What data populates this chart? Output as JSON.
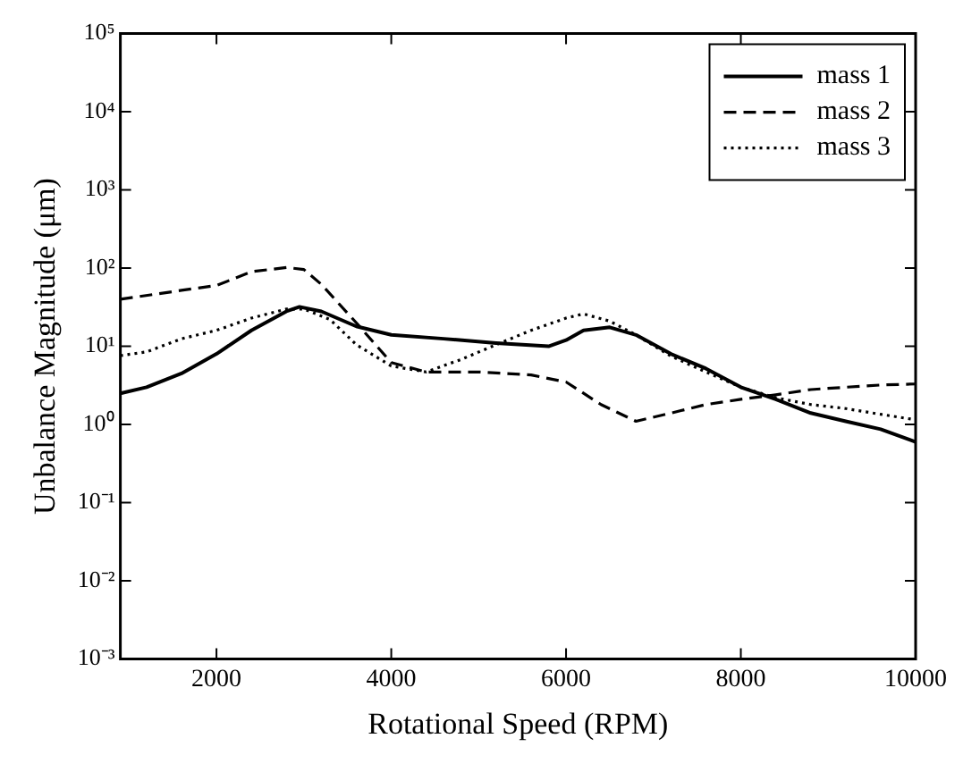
{
  "chart_data": {
    "type": "line",
    "xlabel": "Rotational Speed (RPM)",
    "ylabel": "Unbalance Magnitude (μm)",
    "log": "y",
    "grid": false,
    "legend": "top right",
    "marker": "none",
    "xlim": [
      900,
      10000
    ],
    "xticks": [
      2000,
      4000,
      6000,
      8000,
      10000
    ],
    "ylim": [
      0.001,
      100000
    ],
    "yticks": [
      {
        "value": 0.001,
        "label": "10⁻³"
      },
      {
        "value": 0.01,
        "label": "10⁻²"
      },
      {
        "value": 0.1,
        "label": "10⁻¹"
      },
      {
        "value": 1,
        "label": "10⁰"
      },
      {
        "value": 10,
        "label": "10¹"
      },
      {
        "value": 100,
        "label": "10²"
      },
      {
        "value": 1000,
        "label": "10³"
      },
      {
        "value": 10000,
        "label": "10⁴"
      },
      {
        "value": 100000,
        "label": "10⁵"
      }
    ],
    "series": [
      {
        "name": "mass 1",
        "color": "#000000",
        "line_style": "solid",
        "x": [
          900,
          1200,
          1600,
          2000,
          2400,
          2800,
          2950,
          3200,
          3600,
          4000,
          4600,
          5200,
          5800,
          6000,
          6200,
          6500,
          6800,
          7200,
          7600,
          8000,
          8400,
          8800,
          9200,
          9600,
          10000
        ],
        "values": [
          2.5,
          3.0,
          4.5,
          8,
          16,
          28,
          32,
          28,
          18,
          14,
          12.5,
          11,
          10,
          12,
          16,
          17.5,
          14,
          8,
          5.2,
          3.0,
          2.1,
          1.4,
          1.1,
          0.87,
          0.6
        ]
      },
      {
        "name": "mass 2",
        "color": "#000000",
        "line_style": "dashed",
        "x": [
          900,
          1600,
          2000,
          2400,
          2800,
          3000,
          3200,
          3600,
          4000,
          4400,
          5000,
          5600,
          6000,
          6400,
          6800,
          7200,
          7600,
          8000,
          8400,
          8800,
          9200,
          9600,
          10000
        ],
        "values": [
          40,
          52,
          60,
          90,
          102,
          96,
          62,
          20,
          6.2,
          4.7,
          4.7,
          4.3,
          3.5,
          1.8,
          1.1,
          1.4,
          1.8,
          2.1,
          2.4,
          2.8,
          3.0,
          3.2,
          3.3
        ]
      },
      {
        "name": "mass 3",
        "color": "#000000",
        "line_style": "dotted",
        "x": [
          900,
          1200,
          1600,
          2000,
          2400,
          2800,
          3000,
          3300,
          3600,
          4000,
          4400,
          4800,
          5200,
          5600,
          6000,
          6200,
          6500,
          6800,
          7200,
          7600,
          8000,
          8400,
          8800,
          9200,
          9600,
          10000
        ],
        "values": [
          7.6,
          8.5,
          12.5,
          16,
          23,
          30,
          30,
          22,
          10.5,
          5.6,
          4.7,
          6.8,
          10.5,
          16,
          23,
          26,
          21,
          14,
          7.5,
          4.7,
          3.0,
          2.2,
          1.8,
          1.6,
          1.35,
          1.15
        ]
      }
    ]
  }
}
